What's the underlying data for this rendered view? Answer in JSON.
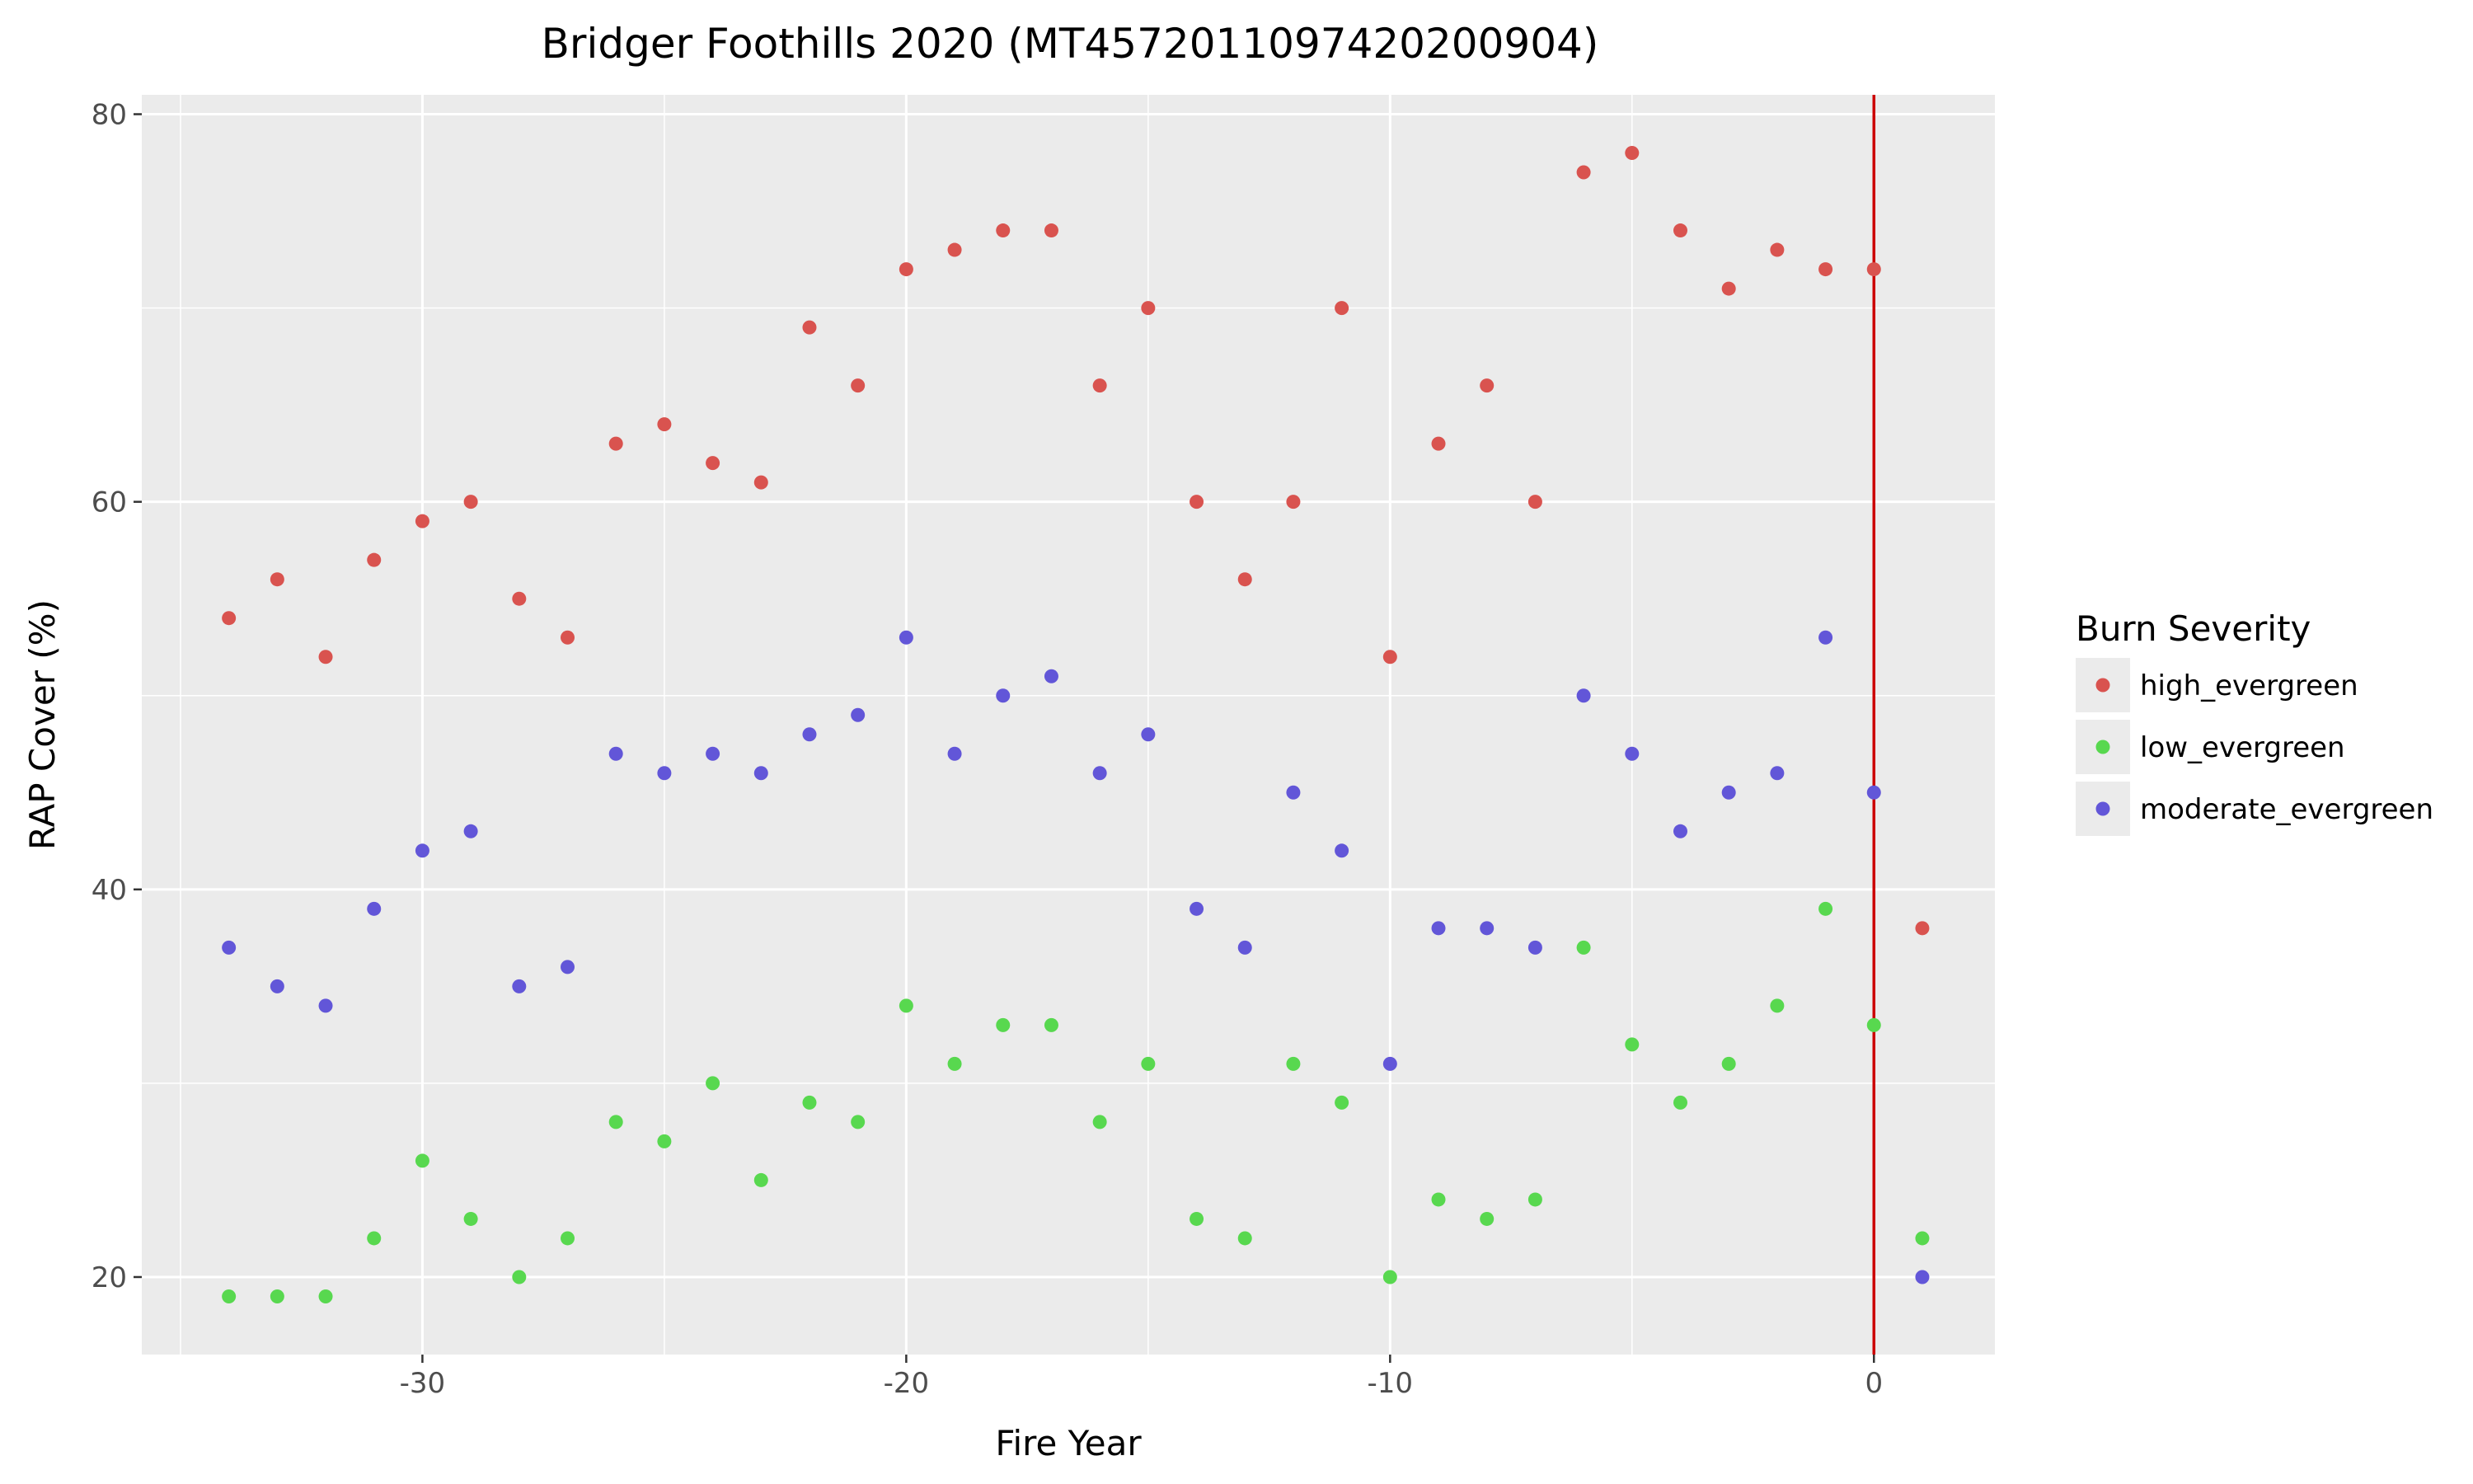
{
  "chart_data": {
    "type": "scatter",
    "title": "Bridger Foothills 2020 (MT4572011097420200904)",
    "xlabel": "Fire Year",
    "ylabel": "RAP Cover (%)",
    "xlim": [
      -35.8,
      2.5
    ],
    "ylim": [
      16,
      81
    ],
    "xticks": [
      -30,
      -20,
      -10,
      0
    ],
    "yticks": [
      20,
      40,
      60,
      80
    ],
    "grid": true,
    "vline": {
      "x": 0,
      "color": "#cc0000"
    },
    "legend": {
      "title": "Burn Severity",
      "placement": "right"
    },
    "x": [
      -34,
      -33,
      -32,
      -31,
      -30,
      -29,
      -28,
      -27,
      -26,
      -25,
      -24,
      -23,
      -22,
      -21,
      -20,
      -19,
      -18,
      -17,
      -16,
      -15,
      -14,
      -13,
      -12,
      -11,
      -10,
      -9,
      -8,
      -7,
      -6,
      -5,
      -4,
      -3,
      -2,
      -1,
      0,
      1
    ],
    "series": [
      {
        "name": "high_evergreen",
        "color": "#d9534f",
        "values": [
          54,
          56,
          52,
          57,
          59,
          60,
          55,
          53,
          63,
          64,
          62,
          61,
          69,
          66,
          72,
          73,
          74,
          74,
          66,
          70,
          60,
          56,
          60,
          70,
          52,
          63,
          66,
          60,
          77,
          78,
          74,
          71,
          73,
          72,
          72,
          38
        ]
      },
      {
        "name": "low_evergreen",
        "color": "#58d84f",
        "values": [
          19,
          19,
          19,
          22,
          26,
          23,
          20,
          22,
          28,
          27,
          30,
          25,
          29,
          28,
          34,
          31,
          33,
          33,
          28,
          31,
          23,
          22,
          31,
          29,
          20,
          24,
          23,
          24,
          37,
          32,
          29,
          31,
          34,
          39,
          33,
          22
        ]
      },
      {
        "name": "moderate_evergreen",
        "color": "#6256d8",
        "values": [
          37,
          35,
          34,
          39,
          42,
          43,
          35,
          36,
          47,
          46,
          47,
          46,
          48,
          49,
          53,
          47,
          50,
          51,
          46,
          48,
          39,
          37,
          45,
          42,
          31,
          38,
          38,
          37,
          50,
          47,
          43,
          45,
          46,
          53,
          45,
          20
        ]
      }
    ]
  }
}
